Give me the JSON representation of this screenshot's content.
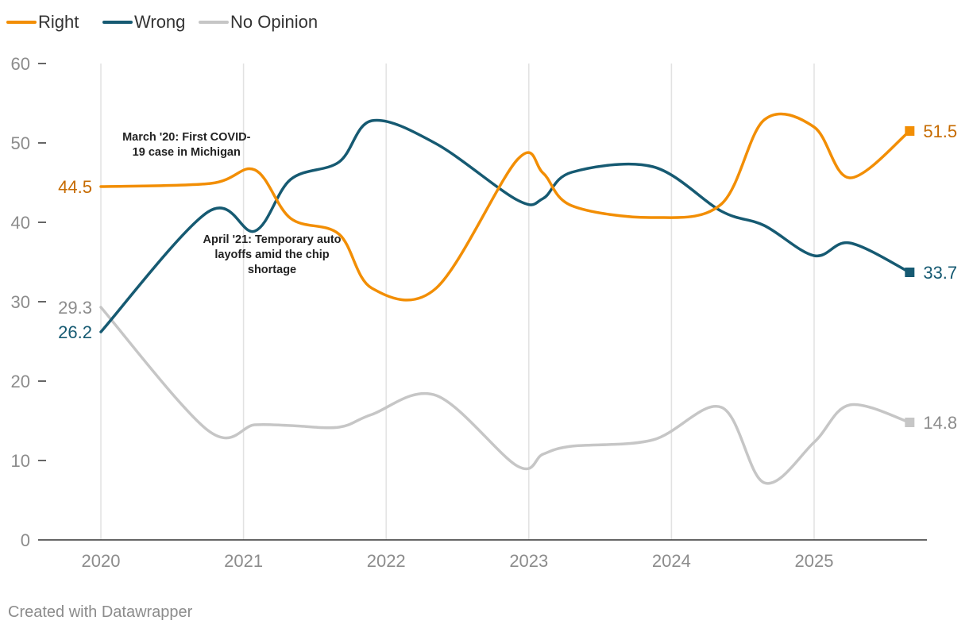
{
  "chart_data": {
    "type": "line",
    "title": "",
    "xlabel": "",
    "ylabel": "",
    "x_ticks": [
      "2020",
      "2021",
      "2022",
      "2023",
      "2024",
      "2025"
    ],
    "y_ticks": [
      0,
      10,
      20,
      30,
      40,
      50,
      60
    ],
    "ylim": [
      0,
      60
    ],
    "xlim": [
      2020.0,
      2026.2
    ],
    "grid": "vertical",
    "legend": "top-left",
    "series": [
      {
        "name": "Right",
        "color": "#f28e04",
        "label_color": "#c66b00",
        "start_label": "44.5",
        "end_label": "51.5",
        "points": [
          [
            2020.0,
            44.5
          ],
          [
            2020.77,
            44.9
          ],
          [
            2021.08,
            46.6
          ],
          [
            2021.33,
            40.5
          ],
          [
            2021.67,
            38.5
          ],
          [
            2021.9,
            31.7
          ],
          [
            2022.35,
            31.7
          ],
          [
            2022.92,
            47.9
          ],
          [
            2023.1,
            46.2
          ],
          [
            2023.3,
            42.1
          ],
          [
            2023.87,
            40.6
          ],
          [
            2024.35,
            42.3
          ],
          [
            2024.65,
            52.9
          ],
          [
            2025.0,
            52.0
          ],
          [
            2025.25,
            45.6
          ],
          [
            2025.67,
            51.5
          ]
        ]
      },
      {
        "name": "Wrong",
        "color": "#165a72",
        "label_color": "#165a72",
        "start_label": "26.2",
        "end_label": "33.7",
        "points": [
          [
            2020.0,
            26.2
          ],
          [
            2020.75,
            41.3
          ],
          [
            2021.08,
            38.9
          ],
          [
            2021.33,
            45.4
          ],
          [
            2021.67,
            47.6
          ],
          [
            2021.9,
            52.8
          ],
          [
            2022.35,
            49.9
          ],
          [
            2022.92,
            42.8
          ],
          [
            2023.1,
            43.0
          ],
          [
            2023.3,
            46.3
          ],
          [
            2023.87,
            47.0
          ],
          [
            2024.35,
            41.4
          ],
          [
            2024.65,
            39.6
          ],
          [
            2025.0,
            35.8
          ],
          [
            2025.25,
            37.4
          ],
          [
            2025.67,
            33.7
          ]
        ]
      },
      {
        "name": "No Opinion",
        "color": "#c6c6c6",
        "label_color": "#8c8c8c",
        "start_label": "29.3",
        "end_label": "14.8",
        "points": [
          [
            2020.0,
            29.3
          ],
          [
            2020.75,
            13.8
          ],
          [
            2021.08,
            14.5
          ],
          [
            2021.33,
            14.4
          ],
          [
            2021.67,
            14.2
          ],
          [
            2021.9,
            15.8
          ],
          [
            2022.35,
            18.2
          ],
          [
            2022.92,
            9.3
          ],
          [
            2023.1,
            10.8
          ],
          [
            2023.3,
            11.8
          ],
          [
            2023.87,
            12.6
          ],
          [
            2024.35,
            16.7
          ],
          [
            2024.65,
            7.2
          ],
          [
            2025.0,
            12.3
          ],
          [
            2025.25,
            17.0
          ],
          [
            2025.67,
            14.8
          ]
        ]
      }
    ],
    "annotations": [
      {
        "text_lines": [
          "March '20: First COVID-",
          "19 case in Michigan"
        ],
        "x": 2020.6,
        "y": 50.3
      },
      {
        "text_lines": [
          "April '21: Temporary auto",
          "layoffs amid the chip",
          "shortage"
        ],
        "x": 2021.2,
        "y": 37.4
      }
    ]
  },
  "footer": {
    "text": "Created with Datawrapper"
  }
}
